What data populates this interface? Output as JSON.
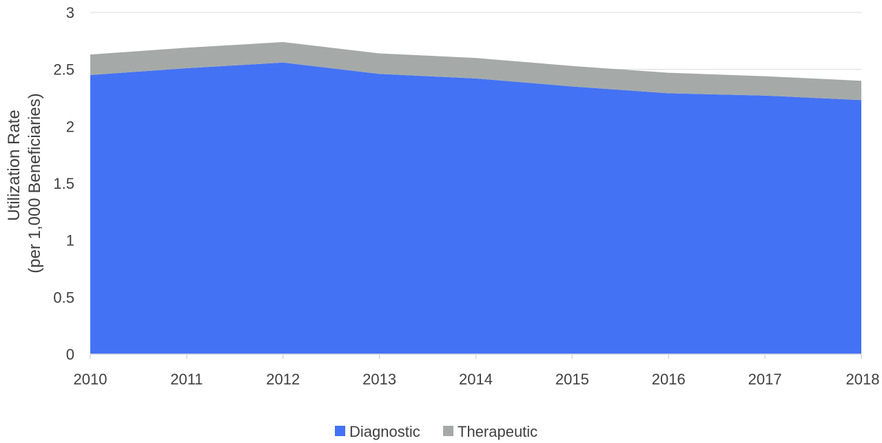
{
  "chart_data": {
    "type": "area",
    "stacked": true,
    "x": [
      "2010",
      "2011",
      "2012",
      "2013",
      "2014",
      "2015",
      "2016",
      "2017",
      "2018"
    ],
    "series": [
      {
        "name": "Diagnostic",
        "values": [
          2.45,
          2.51,
          2.56,
          2.46,
          2.42,
          2.35,
          2.29,
          2.27,
          2.23
        ],
        "color": "#4472f4"
      },
      {
        "name": "Therapeutic",
        "values": [
          0.18,
          0.18,
          0.18,
          0.18,
          0.18,
          0.18,
          0.18,
          0.17,
          0.17
        ],
        "color": "#a5aaa8"
      }
    ],
    "yticks": [
      "0",
      "0.5",
      "1",
      "1.5",
      "2",
      "2.5",
      "3"
    ],
    "ylim": [
      0,
      3
    ],
    "ylabel_lines": [
      "Utilization Rate",
      "(per 1,000 Beneficiaries)"
    ],
    "xlabel": "",
    "title": "",
    "grid": true,
    "legend_position": "bottom"
  }
}
